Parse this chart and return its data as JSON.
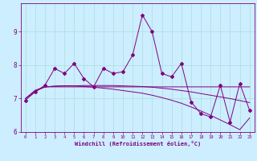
{
  "title": "",
  "xlabel": "Windchill (Refroidissement éolien,°C)",
  "background_color": "#cceeff",
  "line_color": "#800080",
  "grid_color": "#aadddd",
  "x": [
    0,
    1,
    2,
    3,
    4,
    5,
    6,
    7,
    8,
    9,
    10,
    11,
    12,
    13,
    14,
    15,
    16,
    17,
    18,
    19,
    20,
    21,
    22,
    23
  ],
  "series1": [
    6.95,
    7.2,
    7.4,
    7.9,
    7.75,
    8.05,
    7.6,
    7.35,
    7.9,
    7.75,
    7.8,
    8.3,
    9.5,
    9.0,
    7.75,
    7.65,
    8.05,
    6.9,
    6.55,
    6.45,
    7.4,
    6.3,
    7.45,
    6.65
  ],
  "series2": [
    7.0,
    7.25,
    7.35,
    7.35,
    7.35,
    7.35,
    7.35,
    7.35,
    7.35,
    7.35,
    7.35,
    7.35,
    7.35,
    7.35,
    7.35,
    7.35,
    7.35,
    7.35,
    7.35,
    7.35,
    7.35,
    7.35,
    7.35,
    7.35
  ],
  "series3": [
    7.0,
    7.22,
    7.35,
    7.37,
    7.38,
    7.38,
    7.39,
    7.39,
    7.39,
    7.39,
    7.38,
    7.37,
    7.36,
    7.34,
    7.31,
    7.28,
    7.24,
    7.2,
    7.15,
    7.1,
    7.05,
    7.0,
    6.94,
    6.88
  ],
  "series4": [
    7.0,
    7.22,
    7.35,
    7.37,
    7.38,
    7.38,
    7.36,
    7.34,
    7.31,
    7.28,
    7.24,
    7.2,
    7.16,
    7.1,
    7.03,
    6.95,
    6.86,
    6.75,
    6.63,
    6.5,
    6.36,
    6.22,
    6.07,
    6.42
  ],
  "ylim": [
    6.0,
    9.85
  ],
  "xlim": [
    -0.5,
    23.5
  ],
  "yticks": [
    6,
    7,
    8,
    9
  ],
  "xticks": [
    0,
    1,
    2,
    3,
    4,
    5,
    6,
    7,
    8,
    9,
    10,
    11,
    12,
    13,
    14,
    15,
    16,
    17,
    18,
    19,
    20,
    21,
    22,
    23
  ]
}
